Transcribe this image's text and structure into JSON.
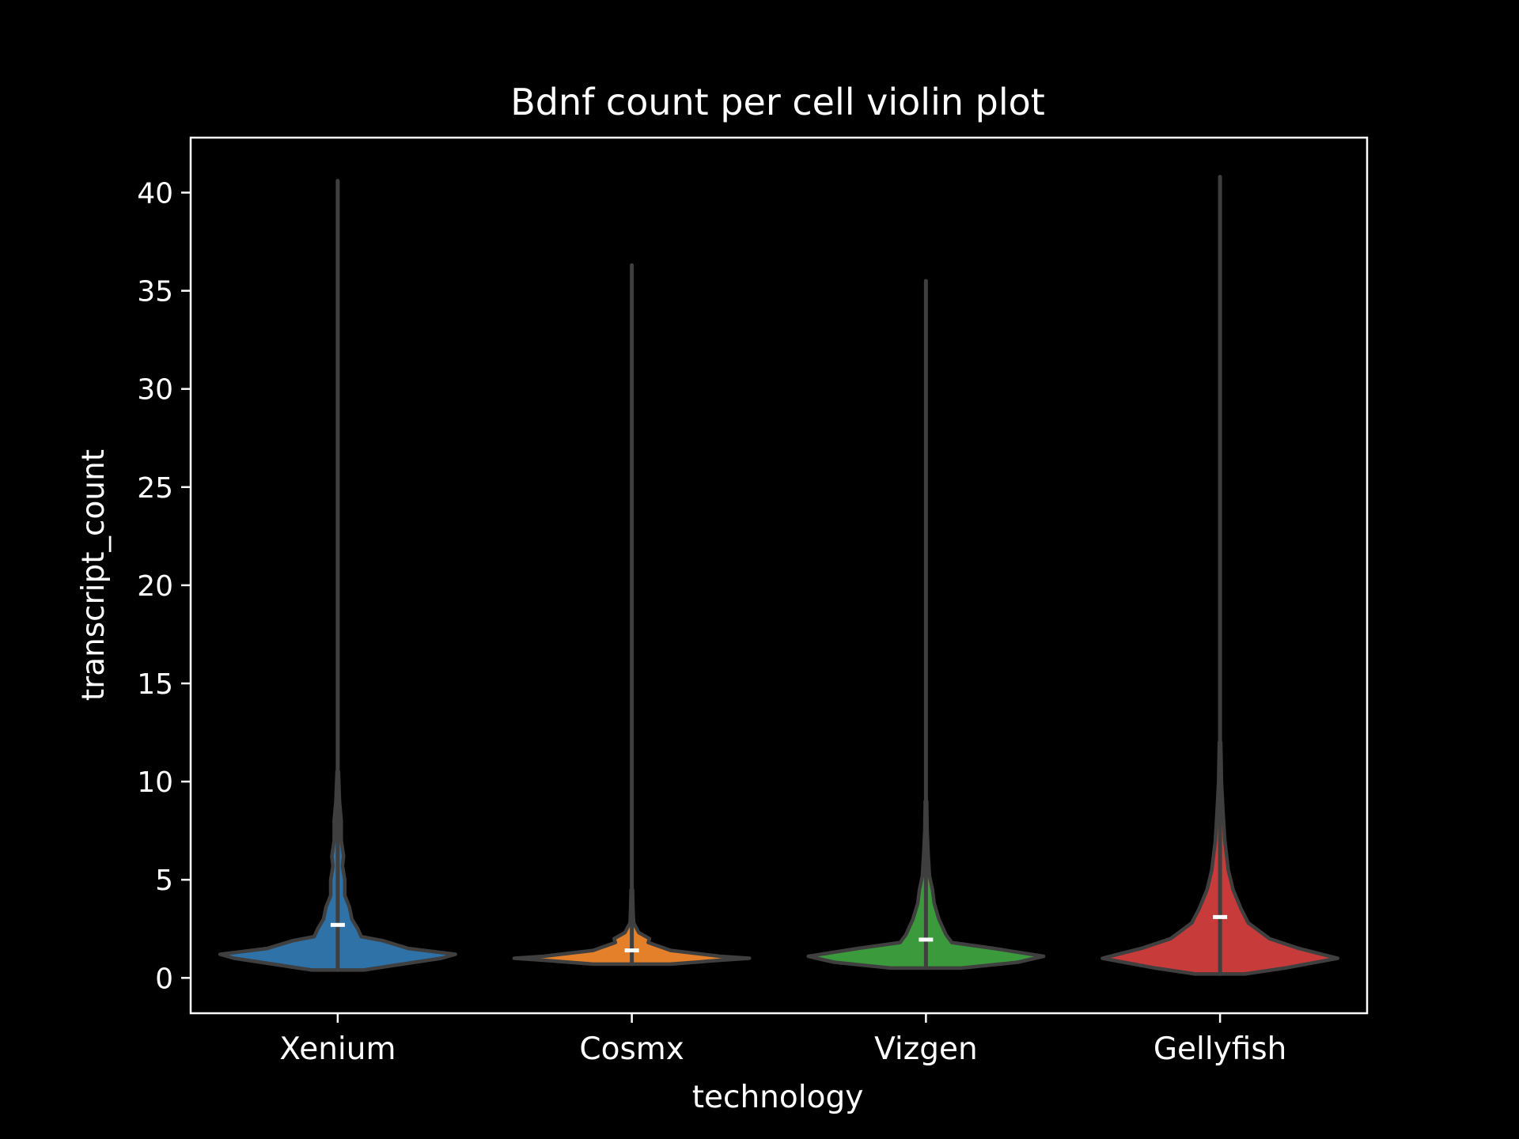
{
  "chart_data": {
    "type": "violin",
    "title": "Bdnf count per cell violin plot",
    "xlabel": "technology",
    "ylabel": "transcript_count",
    "ylim": [
      -1.8,
      42.8
    ],
    "yticks": [
      0,
      5,
      10,
      15,
      20,
      25,
      30,
      35,
      40
    ],
    "grid": false,
    "legend": "none",
    "background": "#000000",
    "foreground": "#ffffff",
    "outline_color": "#3f3f3f",
    "categories": [
      "Xenium",
      "Cosmx",
      "Vizgen",
      "Gellyfish"
    ],
    "violins": [
      {
        "category": "Xenium",
        "color": "#2e72a8",
        "min": 0.4,
        "max": 40.6,
        "median": 2.7,
        "profile": [
          [
            0.4,
            0.22
          ],
          [
            0.7,
            0.55
          ],
          [
            1.0,
            0.88
          ],
          [
            1.2,
            1.0
          ],
          [
            1.5,
            0.6
          ],
          [
            1.9,
            0.38
          ],
          [
            2.1,
            0.2
          ],
          [
            2.5,
            0.17
          ],
          [
            3.0,
            0.12
          ],
          [
            3.6,
            0.1
          ],
          [
            4.2,
            0.06
          ],
          [
            5.0,
            0.06
          ],
          [
            5.7,
            0.04
          ],
          [
            6.2,
            0.05
          ],
          [
            7.0,
            0.03
          ],
          [
            8.0,
            0.03
          ],
          [
            9.0,
            0.015
          ],
          [
            10.5,
            0.006
          ]
        ]
      },
      {
        "category": "Cosmx",
        "color": "#e5802a",
        "min": 0.7,
        "max": 36.3,
        "median": 1.4,
        "profile": [
          [
            0.7,
            0.33
          ],
          [
            0.9,
            0.75
          ],
          [
            1.0,
            1.0
          ],
          [
            1.1,
            0.75
          ],
          [
            1.4,
            0.33
          ],
          [
            1.8,
            0.14
          ],
          [
            2.0,
            0.15
          ],
          [
            2.3,
            0.06
          ],
          [
            2.8,
            0.015
          ],
          [
            3.5,
            0.01
          ],
          [
            4.5,
            0.006
          ]
        ]
      },
      {
        "category": "Vizgen",
        "color": "#3b9a3c",
        "min": 0.5,
        "max": 35.5,
        "median": 1.95,
        "profile": [
          [
            0.5,
            0.3
          ],
          [
            0.8,
            0.78
          ],
          [
            1.1,
            1.0
          ],
          [
            1.5,
            0.58
          ],
          [
            1.8,
            0.22
          ],
          [
            2.2,
            0.17
          ],
          [
            3.0,
            0.11
          ],
          [
            3.8,
            0.07
          ],
          [
            4.5,
            0.055
          ],
          [
            5.2,
            0.03
          ],
          [
            6.2,
            0.02
          ],
          [
            7.5,
            0.01
          ],
          [
            9.0,
            0.006
          ]
        ]
      },
      {
        "category": "Gellyfish",
        "color": "#c83b3b",
        "min": 0.2,
        "max": 40.8,
        "median": 3.1,
        "profile": [
          [
            0.2,
            0.21
          ],
          [
            0.5,
            0.55
          ],
          [
            1.0,
            1.0
          ],
          [
            1.5,
            0.67
          ],
          [
            2.0,
            0.42
          ],
          [
            2.8,
            0.24
          ],
          [
            3.5,
            0.18
          ],
          [
            4.5,
            0.11
          ],
          [
            5.5,
            0.07
          ],
          [
            7.0,
            0.04
          ],
          [
            8.5,
            0.025
          ],
          [
            10.0,
            0.012
          ],
          [
            12.0,
            0.006
          ]
        ]
      }
    ]
  }
}
